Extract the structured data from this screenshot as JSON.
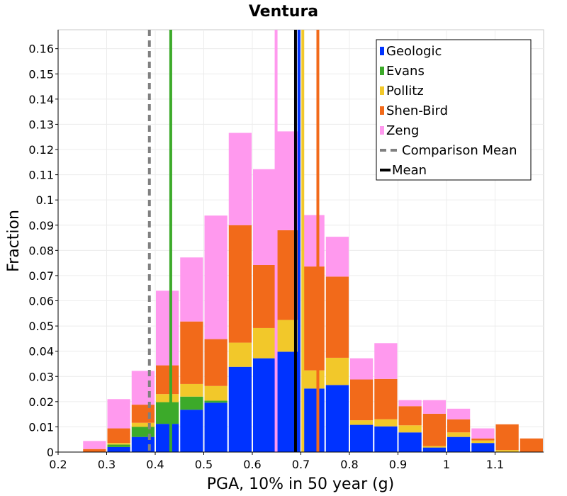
{
  "chart_data": {
    "type": "bar",
    "stacked": true,
    "title": "Ventura",
    "xlabel": "PGA, 10% in 50 year (g)",
    "ylabel": "Fraction",
    "xlim": [
      0.2,
      1.2
    ],
    "ylim": [
      0,
      0.1675
    ],
    "x_ticks": [
      "0.2",
      "0.3",
      "0.4",
      "0.5",
      "0.6",
      "0.7",
      "0.8",
      "0.9",
      "1",
      "1.1"
    ],
    "y_ticks": [
      "0",
      "0.01",
      "0.02",
      "0.03",
      "0.04",
      "0.05",
      "0.06",
      "0.07",
      "0.08",
      "0.09",
      "0.1",
      "0.11",
      "0.12",
      "0.13",
      "0.14",
      "0.15",
      "0.16"
    ],
    "bin_width": 0.05,
    "bin_centers": [
      0.275,
      0.325,
      0.375,
      0.425,
      0.475,
      0.525,
      0.575,
      0.625,
      0.675,
      0.725,
      0.775,
      0.825,
      0.875,
      0.925,
      0.975,
      1.025,
      1.075,
      1.125,
      1.175
    ],
    "grid": true,
    "legend_position": "top-right",
    "series": [
      {
        "name": "Geologic",
        "color": "#0033ff",
        "values": [
          0,
          0.002,
          0.006,
          0.0112,
          0.0168,
          0.0196,
          0.0338,
          0.0372,
          0.0398,
          0.0252,
          0.0266,
          0.0108,
          0.0102,
          0.0078,
          0.0018,
          0.006,
          0.0036,
          0,
          0
        ]
      },
      {
        "name": "Evans",
        "color": "#3caa2a",
        "values": [
          0,
          0.001,
          0.004,
          0.0086,
          0.0052,
          0.0008,
          0,
          0,
          0,
          0,
          0,
          0,
          0,
          0,
          0,
          0,
          0,
          0,
          0
        ]
      },
      {
        "name": "Pollitz",
        "color": "#f2c82a",
        "values": [
          0,
          0.0006,
          0.0016,
          0.0032,
          0.005,
          0.0058,
          0.0096,
          0.012,
          0.0126,
          0.0072,
          0.0108,
          0.0018,
          0.0028,
          0.0028,
          0.0006,
          0.0018,
          0.001,
          0.0008,
          0
        ]
      },
      {
        "name": "Shen-Bird",
        "color": "#f26a1a",
        "values": [
          0.0012,
          0.0058,
          0.0072,
          0.0114,
          0.0248,
          0.0186,
          0.0466,
          0.025,
          0.0356,
          0.0412,
          0.0322,
          0.0162,
          0.016,
          0.0076,
          0.0128,
          0.0052,
          0.0008,
          0.0102,
          0.0054
        ]
      },
      {
        "name": "Zeng",
        "color": "#ff99ee",
        "values": [
          0.0032,
          0.0116,
          0.0134,
          0.0296,
          0.0254,
          0.049,
          0.0366,
          0.038,
          0.0392,
          0.0204,
          0.0158,
          0.0084,
          0.0142,
          0.0024,
          0.0054,
          0.0042,
          0.004,
          0,
          0
        ]
      }
    ],
    "vertical_lines": [
      {
        "x": 0.388,
        "color": "#808080",
        "style": "dashed",
        "label": "Comparison Mean"
      },
      {
        "x": 0.432,
        "color": "#3caa2a",
        "style": "solid",
        "series": "Evans"
      },
      {
        "x": 0.649,
        "color": "#ff99ee",
        "style": "solid",
        "series": "Zeng"
      },
      {
        "x": 0.689,
        "color": "#000000",
        "style": "solid",
        "label": "Mean"
      },
      {
        "x": 0.696,
        "color": "#0033ff",
        "style": "solid",
        "series": "Geologic"
      },
      {
        "x": 0.704,
        "color": "#f2c82a",
        "style": "solid",
        "series": "Pollitz"
      },
      {
        "x": 0.735,
        "color": "#f26a1a",
        "style": "solid",
        "series": "Shen-Bird"
      }
    ],
    "legend": [
      {
        "label": "Geologic",
        "color": "#0033ff",
        "kind": "box"
      },
      {
        "label": "Evans",
        "color": "#3caa2a",
        "kind": "box"
      },
      {
        "label": "Pollitz",
        "color": "#f2c82a",
        "kind": "box"
      },
      {
        "label": "Shen-Bird",
        "color": "#f26a1a",
        "kind": "box"
      },
      {
        "label": "Zeng",
        "color": "#ff99ee",
        "kind": "box"
      },
      {
        "label": "Comparison Mean",
        "color": "#808080",
        "kind": "dashed"
      },
      {
        "label": "Mean",
        "color": "#000000",
        "kind": "line"
      }
    ]
  }
}
